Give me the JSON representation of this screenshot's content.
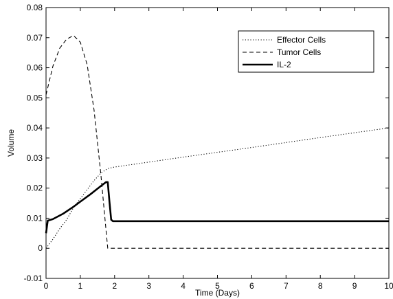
{
  "chart_data": {
    "type": "line",
    "title": "",
    "xlabel": "Time (Days)",
    "ylabel": "Volume",
    "xlim": [
      0,
      10
    ],
    "ylim": [
      -0.01,
      0.08
    ],
    "xticks": [
      0,
      1,
      2,
      3,
      4,
      5,
      6,
      7,
      8,
      9,
      10
    ],
    "xtick_labels": [
      "0",
      "1",
      "2",
      "3",
      "4",
      "5",
      "6",
      "7",
      "8",
      "9",
      "10"
    ],
    "yticks": [
      -0.01,
      0,
      0.01,
      0.02,
      0.03,
      0.04,
      0.05,
      0.06,
      0.07,
      0.08
    ],
    "ytick_labels": [
      "-0.01",
      "0",
      "0.01",
      "0.02",
      "0.03",
      "0.04",
      "0.05",
      "0.06",
      "0.07",
      "0.08"
    ],
    "grid": false,
    "legend_position": "top-right",
    "series": [
      {
        "name": "Effector Cells",
        "style": "dotted",
        "color": "#000000",
        "points": [
          [
            0,
            0
          ],
          [
            0.2,
            0.003
          ],
          [
            0.4,
            0.0065
          ],
          [
            0.6,
            0.0095
          ],
          [
            0.8,
            0.0135
          ],
          [
            1.0,
            0.0165
          ],
          [
            1.2,
            0.0195
          ],
          [
            1.4,
            0.0225
          ],
          [
            1.6,
            0.025
          ],
          [
            1.8,
            0.0265
          ],
          [
            2,
            0.027
          ],
          [
            4,
            0.0303
          ],
          [
            6,
            0.0335
          ],
          [
            8,
            0.0368
          ],
          [
            10,
            0.04
          ]
        ]
      },
      {
        "name": "Tumor Cells",
        "style": "dashed",
        "color": "#000000",
        "points": [
          [
            0,
            0.051
          ],
          [
            0.2,
            0.0605
          ],
          [
            0.4,
            0.0665
          ],
          [
            0.6,
            0.0695
          ],
          [
            0.8,
            0.0707
          ],
          [
            1.0,
            0.0685
          ],
          [
            1.2,
            0.061
          ],
          [
            1.4,
            0.046
          ],
          [
            1.6,
            0.0245
          ],
          [
            1.75,
            0.006
          ],
          [
            1.8,
            0
          ],
          [
            10,
            0
          ]
        ]
      },
      {
        "name": "IL-2",
        "style": "solid",
        "color": "#000000",
        "points": [
          [
            0,
            0.005
          ],
          [
            0.05,
            0.0092
          ],
          [
            0.2,
            0.0097
          ],
          [
            0.5,
            0.0115
          ],
          [
            0.8,
            0.0138
          ],
          [
            1.0,
            0.0155
          ],
          [
            1.3,
            0.018
          ],
          [
            1.6,
            0.0207
          ],
          [
            1.75,
            0.022
          ],
          [
            1.8,
            0.022
          ],
          [
            1.85,
            0.0155
          ],
          [
            1.9,
            0.0095
          ],
          [
            1.95,
            0.009
          ],
          [
            10,
            0.009
          ]
        ]
      }
    ]
  }
}
